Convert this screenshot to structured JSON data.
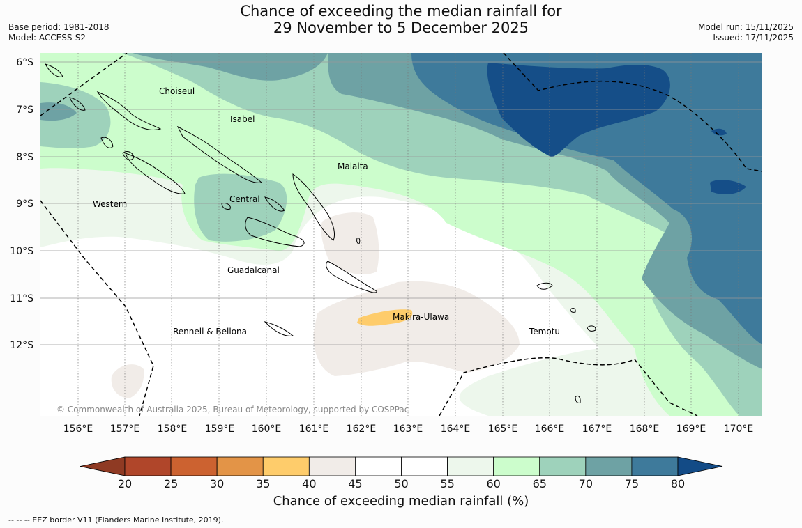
{
  "header": {
    "title_line1": "Chance of exceeding the median rainfall for",
    "title_line2": "29 November to 5 December 2025",
    "base_period": "Base period: 1981-2018",
    "model": "Model: ACCESS-S2",
    "model_run": "Model run: 15/11/2025",
    "issued": "Issued: 17/11/2025"
  },
  "map": {
    "lon_labels": [
      "156°E",
      "157°E",
      "158°E",
      "159°E",
      "160°E",
      "161°E",
      "162°E",
      "163°E",
      "164°E",
      "165°E",
      "166°E",
      "167°E",
      "168°E",
      "169°E",
      "170°E"
    ],
    "lat_labels": [
      "6°S",
      "7°S",
      "8°S",
      "9°S",
      "10°S",
      "11°S",
      "12°S"
    ],
    "regions": [
      "Choiseul",
      "Isabel",
      "Malaita",
      "Western",
      "Central",
      "Guadalcanal",
      "Makira-Ulawa",
      "Rennell & Bellona",
      "Temotu"
    ],
    "copyright": "© Commonwealth of Australia 2025, Bureau of Meteorology, supported by COSPPac"
  },
  "colorbar": {
    "ticks": [
      "20",
      "25",
      "30",
      "35",
      "40",
      "45",
      "50",
      "55",
      "60",
      "65",
      "70",
      "75",
      "80"
    ],
    "colors": [
      "#b0462a",
      "#cc6230",
      "#e39447",
      "#fecc6b",
      "#f1ece8",
      "#ffffff",
      "#ffffff",
      "#edf7ec",
      "#ccfdcc",
      "#9ed2bb",
      "#6ea2a4",
      "#3e7a9b",
      "#154e88"
    ],
    "under_color": "#8f3a23",
    "over_color": "#134b86",
    "label": "Chance of exceeding median rainfall (%)"
  },
  "footnote": "--  --  -- EEZ border V11 (Flanders Marine Institute, 2019)."
}
